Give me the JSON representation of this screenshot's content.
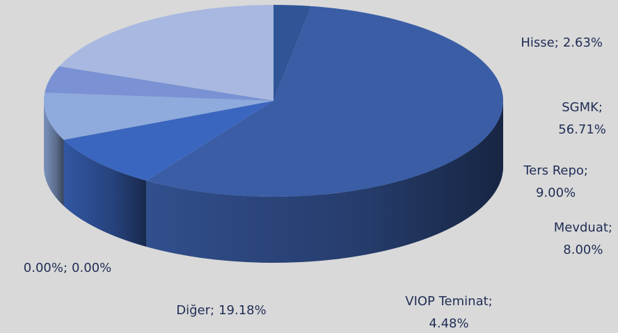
{
  "chart_data": {
    "type": "pie",
    "three_d": true,
    "categories": [
      "Hisse",
      "SGMK",
      "Ters Repo",
      "Mevduat",
      "VIOP Teminat",
      "0.00%",
      "Diğer"
    ],
    "values": [
      2.63,
      56.71,
      9.0,
      8.0,
      4.48,
      0.0,
      19.18
    ],
    "value_labels": [
      "2.63%",
      "56.71%",
      "9.00%",
      "8.00%",
      "4.48%",
      "0.00%",
      "19.18%"
    ],
    "label_separator": ";",
    "colors": [
      "#2f5597",
      "#3a5da6",
      "#3b66bf",
      "#8faadc",
      "#7a92d4",
      "#6f87c9",
      "#a8b8e0"
    ]
  }
}
